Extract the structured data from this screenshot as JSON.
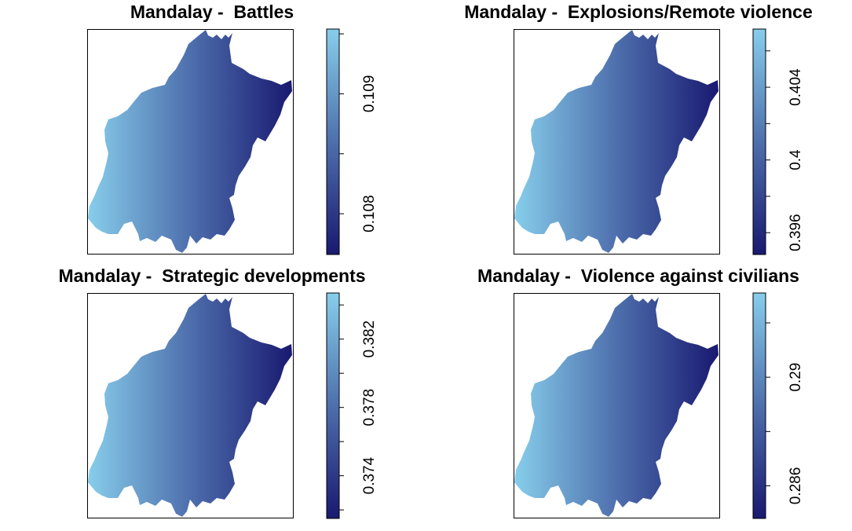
{
  "panels": [
    {
      "title": "Mandalay -  Battles",
      "legend": {
        "ticks": [
          "0.108",
          "0.109"
        ],
        "min": 0.10766,
        "max": 0.10954,
        "tick_values": [
          0.108,
          0.109
        ]
      }
    },
    {
      "title": "Mandalay -  Explosions/Remote violence",
      "legend": {
        "ticks": [
          "0.396",
          "0.4",
          "0.404"
        ],
        "min": 0.3948,
        "max": 0.4072,
        "tick_values": [
          0.396,
          0.4,
          0.404
        ]
      }
    },
    {
      "title": "Mandalay -  Strategic developments",
      "legend": {
        "ticks": [
          "0.374",
          "0.378",
          "0.382"
        ],
        "min": 0.3715,
        "max": 0.3847,
        "tick_values": [
          0.374,
          0.378,
          0.382
        ]
      }
    },
    {
      "title": "Mandalay -  Violence against civilians",
      "legend": {
        "ticks": [
          "0.286",
          "0.29"
        ],
        "min": 0.2848,
        "max": 0.2931,
        "tick_values": [
          0.286,
          0.29
        ]
      }
    }
  ],
  "colors": {
    "low": "#191970",
    "mid": "#4e6fad",
    "high": "#87ceeb"
  }
}
